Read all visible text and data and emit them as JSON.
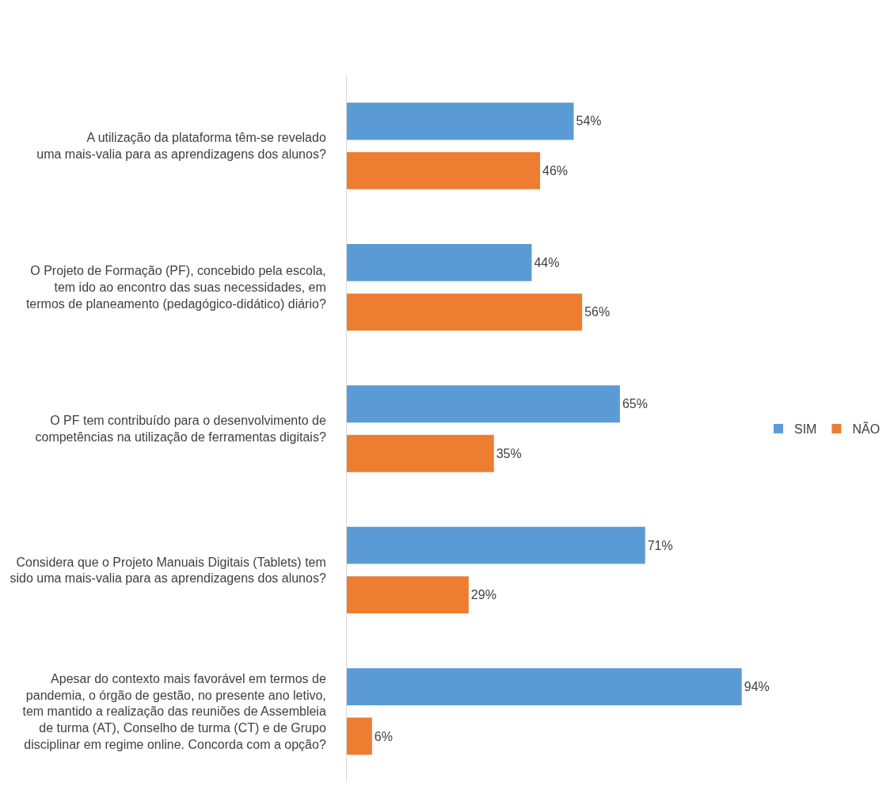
{
  "chart_data": {
    "type": "bar",
    "orientation": "horizontal",
    "data_labels": true,
    "legend": "right",
    "categories": [
      "A utilização da plataforma têm-se revelado\numa mais-valia para as aprendizagens dos alunos?",
      "O Projeto de Formação (PF), concebido pela escola,\ntem ido ao encontro das suas necessidades, em\ntermos de planeamento (pedagógico-didático) diário?",
      "O PF tem contribuído para o desenvolvimento de\ncompetências na utilização de ferramentas digitais?",
      "Considera que o Projeto Manuais Digitais (Tablets) tem\nsido uma mais-valia para as aprendizagens dos alunos?",
      "Apesar do contexto mais favorável em termos de\npandemia, o órgão de gestão, no presente ano letivo,\ntem mantido a realização das reuniões de Assembleia\nde turma (AT), Conselho de turma (CT) e de Grupo\ndisciplinar em regime online. Concorda com a opção?"
    ],
    "series": [
      {
        "name": "SIM",
        "color": "#5b9bd5",
        "values": [
          54,
          44,
          65,
          71,
          94
        ],
        "value_labels": [
          "54%",
          "44%",
          "65%",
          "71%",
          "94%"
        ]
      },
      {
        "name": "NÃO",
        "color": "#ed7d31",
        "values": [
          46,
          56,
          35,
          29,
          6
        ],
        "value_labels": [
          "46%",
          "56%",
          "35%",
          "29%",
          "6%"
        ]
      }
    ]
  }
}
